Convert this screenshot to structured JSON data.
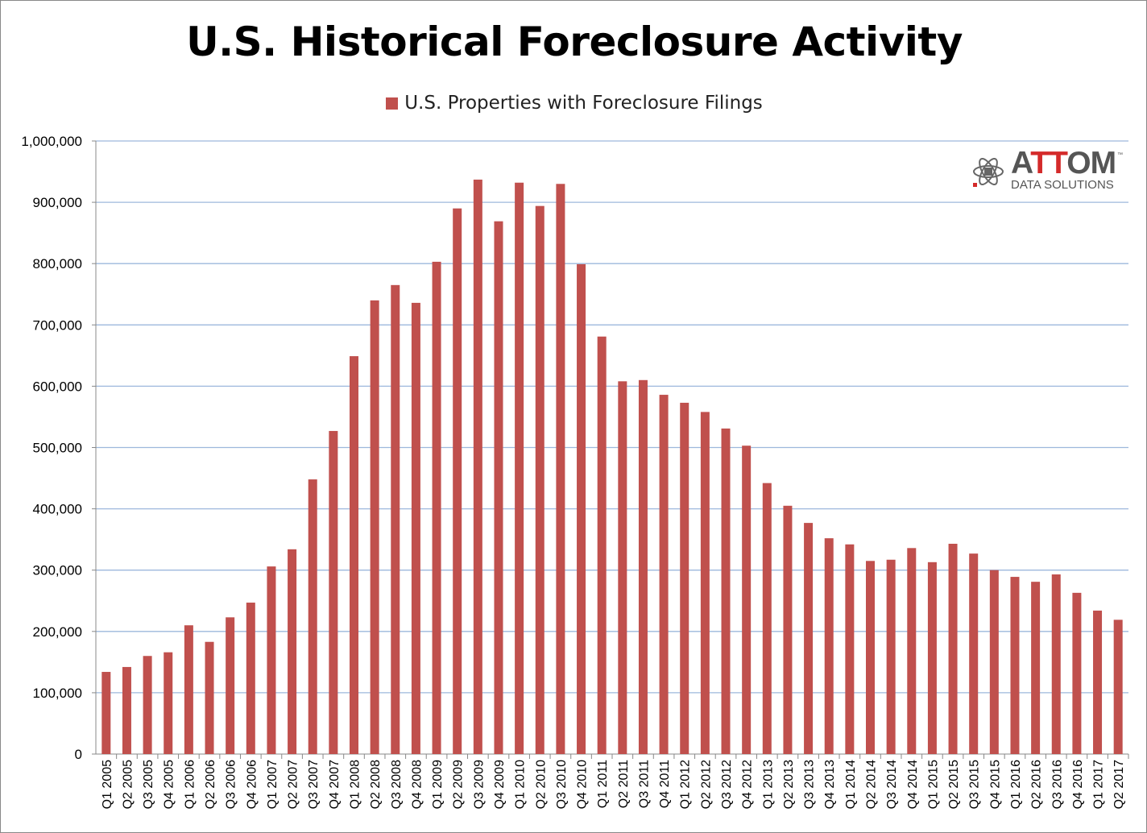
{
  "chart_data": {
    "type": "bar",
    "title": "U.S. Historical Foreclosure Activity",
    "legend": [
      "U.S. Properties with Foreclosure Filings"
    ],
    "legend_position": "top-center",
    "xlabel": "",
    "ylabel": "",
    "ylim": [
      0,
      1000000
    ],
    "yticks": [
      "0",
      "100,000",
      "200,000",
      "300,000",
      "400,000",
      "500,000",
      "600,000",
      "700,000",
      "800,000",
      "900,000",
      "1,000,000"
    ],
    "grid": true,
    "bar_color": "#C0504D",
    "categories": [
      "Q1 2005",
      "Q2 2005",
      "Q3 2005",
      "Q4 2005",
      "Q1 2006",
      "Q2 2006",
      "Q3 2006",
      "Q4 2006",
      "Q1 2007",
      "Q2 2007",
      "Q3 2007",
      "Q4 2007",
      "Q1 2008",
      "Q2 2008",
      "Q3 2008",
      "Q4 2008",
      "Q1 2009",
      "Q2 2009",
      "Q3 2009",
      "Q4 2009",
      "Q1 2010",
      "Q2 2010",
      "Q3 2010",
      "Q4 2010",
      "Q1 2011",
      "Q2 2011",
      "Q3 2011",
      "Q4 2011",
      "Q1 2012",
      "Q2 2012",
      "Q3 2012",
      "Q4 2012",
      "Q1 2013",
      "Q2 2013",
      "Q3 2013",
      "Q4 2013",
      "Q1 2014",
      "Q2 2014",
      "Q3 2014",
      "Q4 2014",
      "Q1 2015",
      "Q2 2015",
      "Q3 2015",
      "Q4 2015",
      "Q1 2016",
      "Q2 2016",
      "Q3 2016",
      "Q4 2016",
      "Q1 2017",
      "Q2 2017"
    ],
    "series": [
      {
        "name": "U.S. Properties with Foreclosure Filings",
        "values": [
          134000,
          142000,
          160000,
          166000,
          210000,
          183000,
          223000,
          247000,
          306000,
          334000,
          448000,
          527000,
          649000,
          740000,
          765000,
          736000,
          803000,
          890000,
          937000,
          869000,
          932000,
          894000,
          930000,
          799000,
          681000,
          608000,
          610000,
          586000,
          573000,
          558000,
          531000,
          503000,
          442000,
          405000,
          377000,
          352000,
          342000,
          315000,
          317000,
          336000,
          313000,
          343000,
          327000,
          300000,
          289000,
          281000,
          293000,
          263000,
          234000,
          219000
        ]
      }
    ]
  },
  "logo": {
    "word_a": "A",
    "word_tt": "TT",
    "word_om": "OM",
    "tm": "™",
    "sub": "DATA SOLUTIONS"
  }
}
